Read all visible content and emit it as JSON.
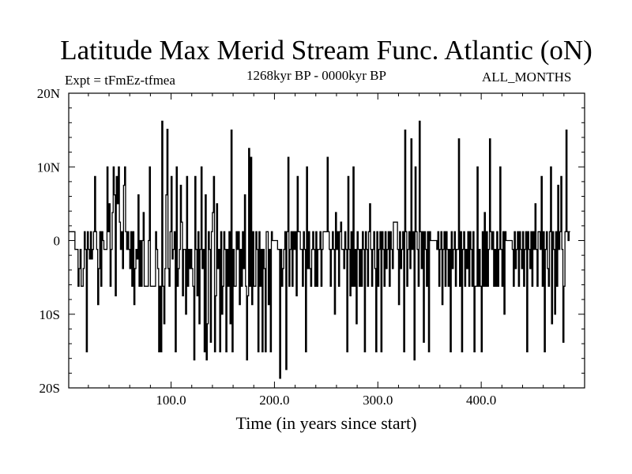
{
  "chart_data": {
    "type": "line",
    "title": "Latitude Max Merid Stream Func. Atlantic (oN)",
    "subtitle_left": "Expt = tFmEz-tfmea",
    "subtitle_center": "1268kyr BP - 0000kyr BP",
    "subtitle_right": "ALL_MONTHS",
    "xlabel": "Time (in years since start)",
    "ylabel": "",
    "xlim": [
      1,
      500
    ],
    "ylim": [
      -20,
      20
    ],
    "xticks": [
      {
        "value": 100,
        "label": "100.0"
      },
      {
        "value": 200,
        "label": "200.0"
      },
      {
        "value": 300,
        "label": "300.0"
      },
      {
        "value": 400,
        "label": "400.0"
      }
    ],
    "yticks": [
      {
        "value": 20,
        "label": "20N"
      },
      {
        "value": 10,
        "label": "10N"
      },
      {
        "value": 0,
        "label": "0"
      },
      {
        "value": -10,
        "label": "10S"
      },
      {
        "value": -20,
        "label": "20S"
      }
    ],
    "series": [
      {
        "name": "lat_max_merid_stream_func",
        "x_start": 1,
        "x_step": 1,
        "values": [
          1.2,
          1.2,
          1.2,
          1.2,
          1.2,
          1.2,
          -1.2,
          -1.2,
          -1.2,
          -6.2,
          -3.8,
          -1.2,
          -6.2,
          -6.2,
          -3.8,
          1.2,
          -1.2,
          -15.1,
          1.2,
          -1.2,
          -2.5,
          1.2,
          -2.5,
          -1.2,
          1.2,
          8.7,
          1.2,
          -1.2,
          -8.7,
          -3.8,
          1.2,
          -6.2,
          1.2,
          0,
          -1.2,
          -1.2,
          -1.2,
          10,
          1.2,
          5,
          -6.2,
          -1.2,
          3.8,
          10,
          6.2,
          -7.5,
          8.7,
          5,
          10,
          2.5,
          -1.2,
          1.2,
          -3.8,
          7.5,
          10,
          1.2,
          -1.2,
          1.2,
          -1.2,
          -3.8,
          1.2,
          -6.2,
          1.2,
          -8.7,
          -3.8,
          -1.2,
          -2.5,
          6.2,
          -6.2,
          0,
          -6.2,
          0,
          3.8,
          -6.2,
          -6.2,
          -6.2,
          -6.2,
          0,
          10,
          -6.2,
          -6.2,
          -6.2,
          -6.2,
          -6.2,
          1.2,
          -1.2,
          -3.8,
          -15.1,
          -6.2,
          -15.1,
          16.2,
          -6.2,
          -11.3,
          -3.8,
          6.2,
          15.1,
          -3.8,
          -6.2,
          1.2,
          8.7,
          -2.5,
          -1.2,
          1.2,
          -15.1,
          10,
          -6.2,
          -3.8,
          -1.2,
          7.5,
          2.5,
          -7.5,
          -1.2,
          -1.2,
          -10,
          8.7,
          -6.2,
          -1.2,
          -3.8,
          -1.2,
          -3.8,
          -6.2,
          -16.2,
          8.7,
          -1.2,
          -7.5,
          1.2,
          -11.3,
          -1.2,
          10,
          -3.8,
          -1.2,
          -15.1,
          6.2,
          -16.2,
          -11.3,
          1.2,
          -1.2,
          -13.8,
          1.2,
          3.8,
          8.7,
          -15.1,
          -7.5,
          5,
          -3.8,
          -1.2,
          -15.1,
          1.2,
          -10,
          -6.2,
          1.2,
          -1.2,
          -15.1,
          -1.2,
          -6.2,
          1.2,
          -11.3,
          15,
          -15.1,
          -1.2,
          -6.2,
          -6.2,
          1.2,
          -1.2,
          1.2,
          -8.7,
          -1.2,
          -6.2,
          1.2,
          -3.8,
          6.2,
          -6.2,
          -16.2,
          -7.5,
          12.5,
          -6.2,
          11.3,
          -8.7,
          1.2,
          -6.2,
          -6.2,
          1.2,
          -1.2,
          -15.1,
          1.2,
          -6.2,
          -1.2,
          -15.1,
          -1.2,
          -3.8,
          -15.1,
          1.2,
          1.2,
          -8.7,
          -1.2,
          -15.1,
          1.2,
          0,
          0,
          0,
          0,
          0,
          -1.2,
          -1.2,
          -18.7,
          -1.2,
          -6.2,
          -3.8,
          -1.2,
          1.2,
          -17.5,
          1.2,
          11.3,
          -6.2,
          -1.2,
          1.2,
          -6.2,
          1.2,
          -1.2,
          1.2,
          -7.5,
          8.7,
          1.2,
          1.2,
          -1.2,
          -1.2,
          -6.2,
          1.2,
          -1.2,
          -15.1,
          10,
          -3.8,
          1.2,
          -3.8,
          -6.2,
          -1.2,
          1.2,
          -1.2,
          -6.2,
          1.2,
          -6.2,
          -1.2,
          -1.2,
          1.2,
          -6.2,
          -1.2,
          1.2,
          1.2,
          1.2,
          1.2,
          11.3,
          1.2,
          -1.2,
          -6.2,
          -1.2,
          1.2,
          -1.2,
          -10,
          3.8,
          -1.2,
          1.2,
          -6.2,
          1.2,
          2.5,
          -1.2,
          -1.2,
          -3.8,
          1.2,
          -1.2,
          -15.1,
          8.7,
          -1.2,
          -7.5,
          1.2,
          -6.2,
          10,
          -6.2,
          -1.2,
          -11.3,
          1.2,
          -1.2,
          -6.2,
          -1.2,
          -6.2,
          1.2,
          -1.2,
          -15.1,
          1.2,
          -1.2,
          -6.2,
          1.2,
          5,
          -1.2,
          -6.2,
          -1.2,
          1.2,
          -3.8,
          -15.1,
          1.2,
          -6.2,
          -1.2,
          1.2,
          -15.1,
          1.2,
          -1.2,
          -6.2,
          1.2,
          -3.8,
          -1.2,
          1.2,
          -6.2,
          1.2,
          -1.2,
          -3.8,
          2.5,
          2.5,
          2.5,
          2.5,
          -1.2,
          -8.7,
          1.2,
          -3.8,
          -1.2,
          1.2,
          -15.1,
          15,
          1.2,
          -6.2,
          -1.2,
          1.2,
          -3.8,
          13.8,
          -1.2,
          1.2,
          -16.2,
          10,
          1.2,
          -1.2,
          -6.2,
          16.2,
          1.2,
          -3.8,
          1.2,
          -13.8,
          1.2,
          -1.2,
          -6.2,
          1.2,
          -15.1,
          1.2,
          0,
          0,
          0,
          0,
          0,
          0,
          -1.2,
          1.2,
          -6.2,
          -1.2,
          1.2,
          -8.7,
          -1.2,
          1.2,
          -6.2,
          1.2,
          -1.2,
          -6.2,
          -1.2,
          -15.1,
          1.2,
          -3.8,
          -1.2,
          1.2,
          -6.2,
          -1.2,
          -1.2,
          13.8,
          -6.2,
          1.2,
          -15.1,
          -1.2,
          1.2,
          -6.2,
          -1.2,
          -3.8,
          1.2,
          -6.2,
          1.2,
          -1.2,
          -6.2,
          1.2,
          -15.1,
          -6.2,
          -6.2,
          10,
          -6.2,
          -1.2,
          -6.2,
          -15.1,
          1.2,
          -6.2,
          3.8,
          -6.2,
          1.2,
          -6.2,
          -1.2,
          13.8,
          1.2,
          -1.2,
          1.2,
          -6.2,
          -1.2,
          -6.2,
          1.2,
          -6.2,
          -1.2,
          10,
          -1.2,
          -6.2,
          1.2,
          -10,
          1.2,
          0,
          0,
          0,
          0,
          0,
          0,
          -1.2,
          -6.2,
          1.2,
          -3.8,
          -1.2,
          1.2,
          -6.2,
          1.2,
          -1.2,
          -3.8,
          1.2,
          -6.2,
          -1.2,
          1.2,
          -15.1,
          1.2,
          -1.2,
          -3.8,
          1.2,
          -6.2,
          1.2,
          -1.2,
          5,
          -1.2,
          -6.2,
          1.2,
          1.2,
          -1.2,
          8.7,
          -6.2,
          1.2,
          -15.1,
          -1.2,
          1.2,
          -3.8,
          -6.2,
          1.2,
          10,
          -11.3,
          1.2,
          -1.2,
          -10,
          1.2,
          -6.2,
          7.5,
          -1.2,
          1.2,
          8.7,
          -1.2,
          -13.8,
          -6.2,
          1.2,
          15,
          1.2,
          0,
          1.2
        ]
      }
    ]
  }
}
